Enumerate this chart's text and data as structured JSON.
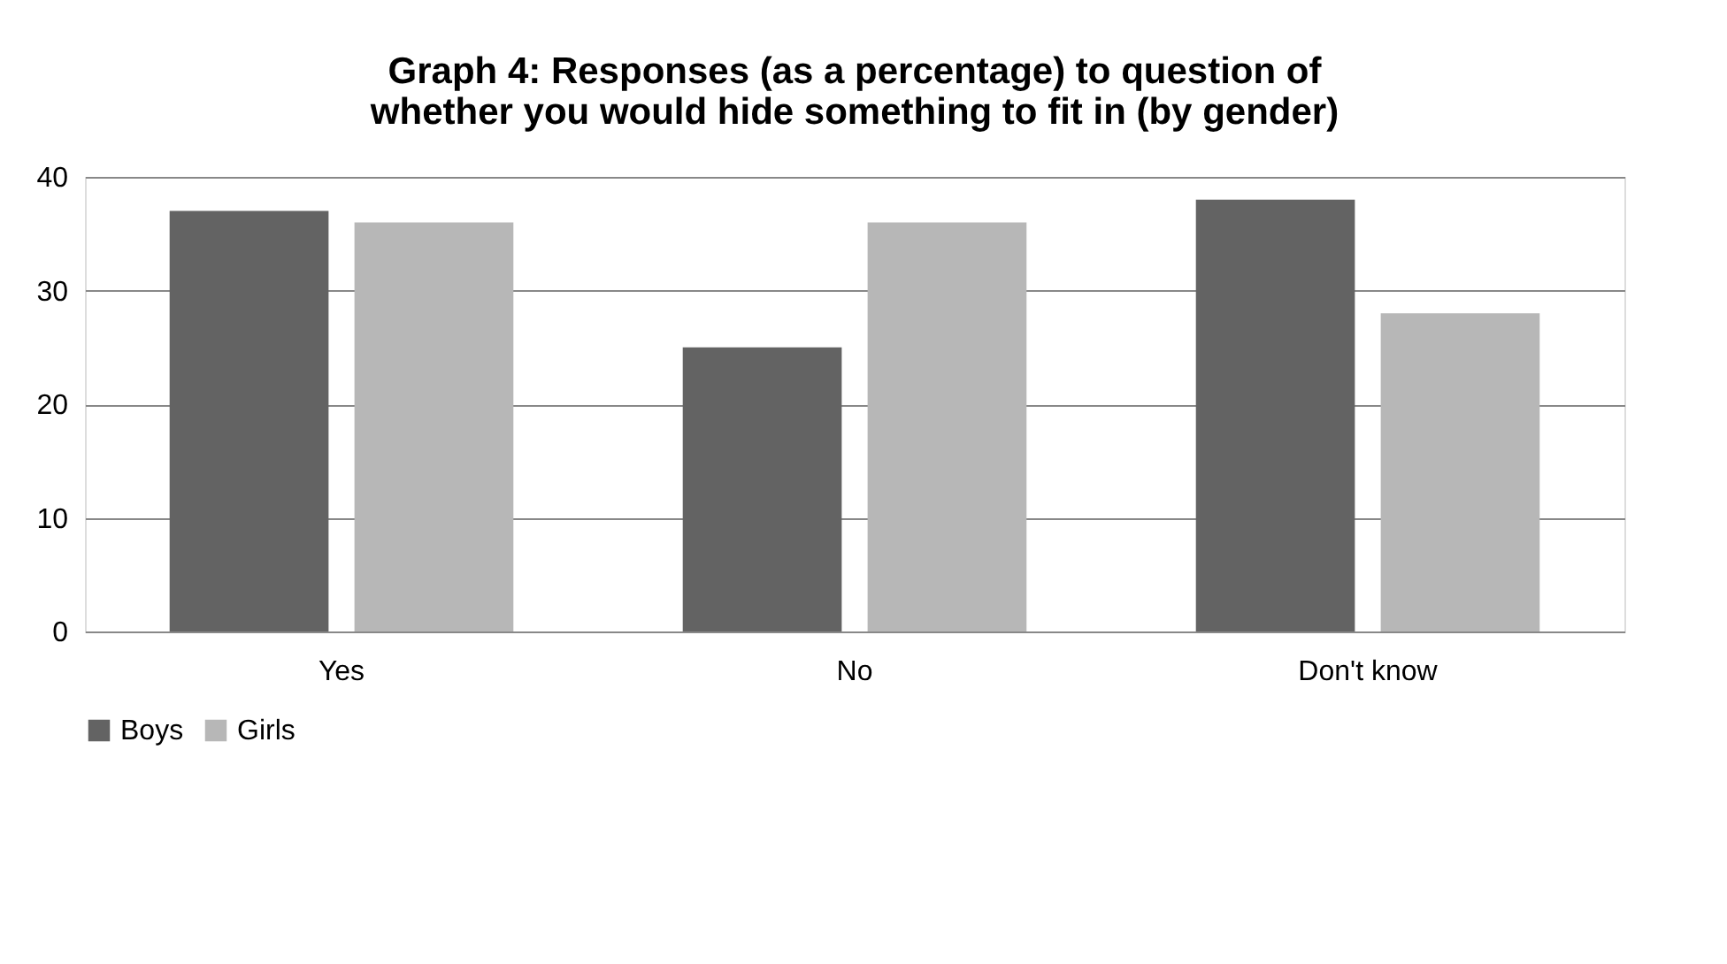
{
  "chart_data": {
    "type": "bar",
    "title": "Graph 4: Responses (as a percentage) to question of\nwhether you would hide something to fit in (by gender)",
    "categories": [
      "Yes",
      "No",
      "Don't know"
    ],
    "series": [
      {
        "name": "Boys",
        "color": "#636363",
        "values": [
          37,
          25,
          38
        ]
      },
      {
        "name": "Girls",
        "color": "#b7b7b7",
        "values": [
          36,
          36,
          28
        ]
      }
    ],
    "ylim": [
      0,
      40
    ],
    "yticks": [
      0,
      10,
      20,
      30,
      40
    ],
    "grid": "y",
    "legend": "bottom"
  }
}
